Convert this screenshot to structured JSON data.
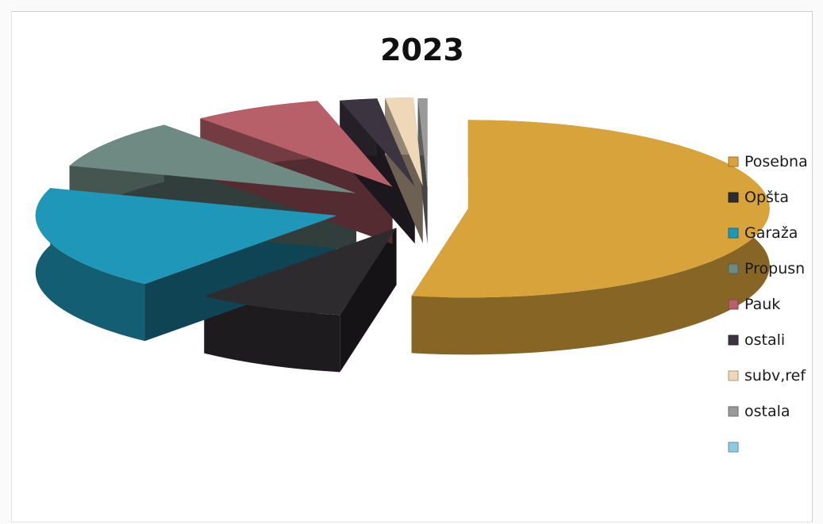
{
  "chart_data": {
    "type": "pie",
    "style": "3d-exploded",
    "title": "2023",
    "legend_position": "right",
    "series": [
      {
        "name": "Posebna",
        "value": 53.0,
        "color": "#d9a33c"
      },
      {
        "name": "Opšta",
        "value": 8.0,
        "color": "#2e2b2e"
      },
      {
        "name": "Garaža",
        "value": 19.0,
        "color": "#1f97b8"
      },
      {
        "name": "Propusn",
        "value": 9.0,
        "color": "#6f8a83"
      },
      {
        "name": "Pauk",
        "value": 7.0,
        "color": "#b8606a"
      },
      {
        "name": "ostali",
        "value": 2.0,
        "color": "#3c3440"
      },
      {
        "name": "subv,ref",
        "value": 1.5,
        "color": "#efd8b8"
      },
      {
        "name": "ostala",
        "value": 0.5,
        "color": "#9a9a9a"
      },
      {
        "name": "",
        "value": 0.0,
        "color": "#8ccbe6"
      }
    ]
  }
}
